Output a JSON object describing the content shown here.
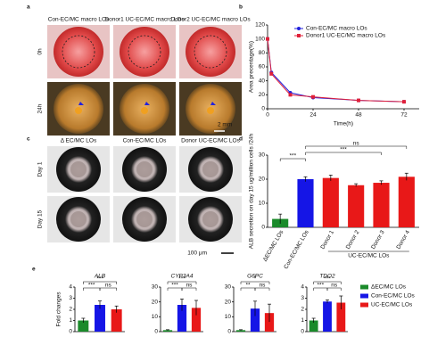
{
  "photo_panels": [
    {
      "label": "a",
      "columns": [
        "Con-EC/MC macro LOs",
        "Donor1 UC-EC/MC macro LOs",
        "Donor2 UC-EC/MC macro LOs"
      ],
      "rows": [
        "0h",
        "24h"
      ],
      "scale_bar": "2 mm"
    },
    {
      "label": "c",
      "columns": [
        "Δ EC/MC LOs",
        "Con-EC/MC LOs",
        "Donor UC-EC/MC LOs"
      ],
      "rows": [
        "Day 1",
        "Day 15"
      ],
      "scale_bar": "100 μm"
    }
  ],
  "chart_data": [
    {
      "type": "line",
      "label": "b",
      "x": [
        0,
        2,
        12,
        24,
        48,
        72
      ],
      "series": [
        {
          "name": "Con-EC/MC macro LOs",
          "color": "#2222dd",
          "values": [
            100,
            52,
            23,
            16,
            12,
            10
          ]
        },
        {
          "name": "Donor1 UC-EC/MC macro LOs",
          "color": "#e0203a",
          "values": [
            100,
            50,
            20,
            17,
            12,
            10
          ]
        }
      ],
      "xlim": [
        0,
        80
      ],
      "xticks": [
        0,
        24,
        48,
        72
      ],
      "ylim": [
        0,
        120
      ],
      "yticks": [
        0,
        20,
        40,
        60,
        80,
        100,
        120
      ],
      "xlabel": "Time(h)",
      "ylabel": "Area precentage(%)",
      "legend": "upper right"
    },
    {
      "type": "bar",
      "label": "d",
      "ylabel": "ALB secretion on day 15 ug/million cells /24h",
      "categories": [
        "ΔEC/MC LOs",
        "Con-EC/MC LOs",
        "Donor 1",
        "Donor 2",
        "Donor 3",
        "Donor 4"
      ],
      "values": [
        3.5,
        20,
        20.5,
        17.5,
        18.5,
        21
      ],
      "errors": [
        2,
        1,
        1.2,
        0.6,
        0.8,
        1.5
      ],
      "colors": [
        "#1a8a2a",
        "#1515e6",
        "#e81818",
        "#e81818",
        "#e81818",
        "#e81818"
      ],
      "ylim": [
        0,
        30
      ],
      "yticks": [
        0,
        10,
        20,
        30
      ],
      "group_label": "UC-EC/MC LOs",
      "annotations": [
        "ns",
        "***",
        "***"
      ]
    },
    {
      "type": "bar",
      "label": "e",
      "title": "ALB",
      "ylabel": "Fold changes",
      "values": [
        1,
        2.4,
        2.0
      ],
      "errors": [
        0.2,
        0.35,
        0.3
      ],
      "colors": [
        "#1a8a2a",
        "#1515e6",
        "#e81818"
      ],
      "ylim": [
        0,
        4
      ],
      "yticks": [
        0,
        1,
        2,
        3,
        4
      ],
      "annotations": [
        "***",
        "***",
        "ns"
      ],
      "legend_labels": [
        "ΔEC/MC LOs",
        "Con-EC/MC LOs",
        "UC-EC/MC LOs"
      ]
    },
    {
      "type": "bar",
      "title": "CYP3A4",
      "values": [
        1,
        18,
        16
      ],
      "errors": [
        0.3,
        4,
        5
      ],
      "colors": [
        "#1a8a2a",
        "#1515e6",
        "#e81818"
      ],
      "ylim": [
        0,
        30
      ],
      "yticks": [
        0,
        10,
        20,
        30
      ],
      "annotations": [
        "***",
        "***",
        "ns"
      ]
    },
    {
      "type": "bar",
      "title": "G6PC",
      "values": [
        1,
        15.5,
        12.5
      ],
      "errors": [
        0.3,
        5,
        6
      ],
      "colors": [
        "#1a8a2a",
        "#1515e6",
        "#e81818"
      ],
      "ylim": [
        0,
        30
      ],
      "yticks": [
        0,
        10,
        20,
        30
      ],
      "annotations": [
        "*",
        "**",
        "ns"
      ]
    },
    {
      "type": "bar",
      "title": "TDO2",
      "values": [
        1,
        2.7,
        2.6
      ],
      "errors": [
        0.2,
        0.15,
        0.6
      ],
      "colors": [
        "#1a8a2a",
        "#1515e6",
        "#e81818"
      ],
      "ylim": [
        0,
        4
      ],
      "yticks": [
        0,
        1,
        2,
        3,
        4
      ],
      "annotations": [
        "***",
        "***",
        "ns"
      ]
    }
  ]
}
